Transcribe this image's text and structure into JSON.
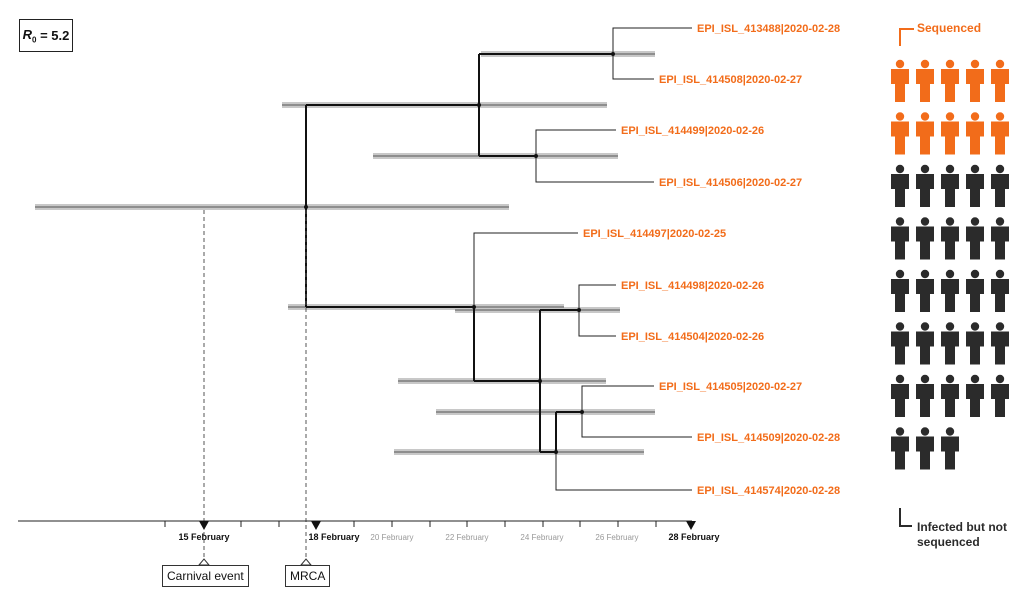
{
  "r0": {
    "symbol": "R",
    "subscript": "0",
    "value": "= 5.2"
  },
  "tips": [
    {
      "id": "EPI_ISL_413488",
      "date": "2020-02-28",
      "label": "EPI_ISL_413488|2020-02-28"
    },
    {
      "id": "EPI_ISL_414508",
      "date": "2020-02-27",
      "label": "EPI_ISL_414508|2020-02-27"
    },
    {
      "id": "EPI_ISL_414499",
      "date": "2020-02-26",
      "label": "EPI_ISL_414499|2020-02-26"
    },
    {
      "id": "EPI_ISL_414506",
      "date": "2020-02-27",
      "label": "EPI_ISL_414506|2020-02-27"
    },
    {
      "id": "EPI_ISL_414497",
      "date": "2020-02-25",
      "label": "EPI_ISL_414497|2020-02-25"
    },
    {
      "id": "EPI_ISL_414498",
      "date": "2020-02-26",
      "label": "EPI_ISL_414498|2020-02-26"
    },
    {
      "id": "EPI_ISL_414504",
      "date": "2020-02-26",
      "label": "EPI_ISL_414504|2020-02-26"
    },
    {
      "id": "EPI_ISL_414505",
      "date": "2020-02-27",
      "label": "EPI_ISL_414505|2020-02-27"
    },
    {
      "id": "EPI_ISL_414509",
      "date": "2020-02-28",
      "label": "EPI_ISL_414509|2020-02-28"
    },
    {
      "id": "EPI_ISL_414574",
      "date": "2020-02-28",
      "label": "EPI_ISL_414574|2020-02-28"
    }
  ],
  "axis": {
    "ticks_major": [
      "15 February",
      "18 February",
      "28 February"
    ],
    "ticks_minor": [
      "20 February",
      "22 February",
      "24 February",
      "26 February"
    ]
  },
  "events": {
    "carnival": "Carnival event",
    "mrca": "MRCA"
  },
  "legend": {
    "sequenced": "Sequenced",
    "unsequenced_line1": "Infected but not",
    "unsequenced_line2": "sequenced",
    "sequenced_count": 10,
    "unsequenced_count": 28
  },
  "colors": {
    "orange": "#f26c1a",
    "dark": "#2b2b2b",
    "bar": "#c8c8c8"
  }
}
